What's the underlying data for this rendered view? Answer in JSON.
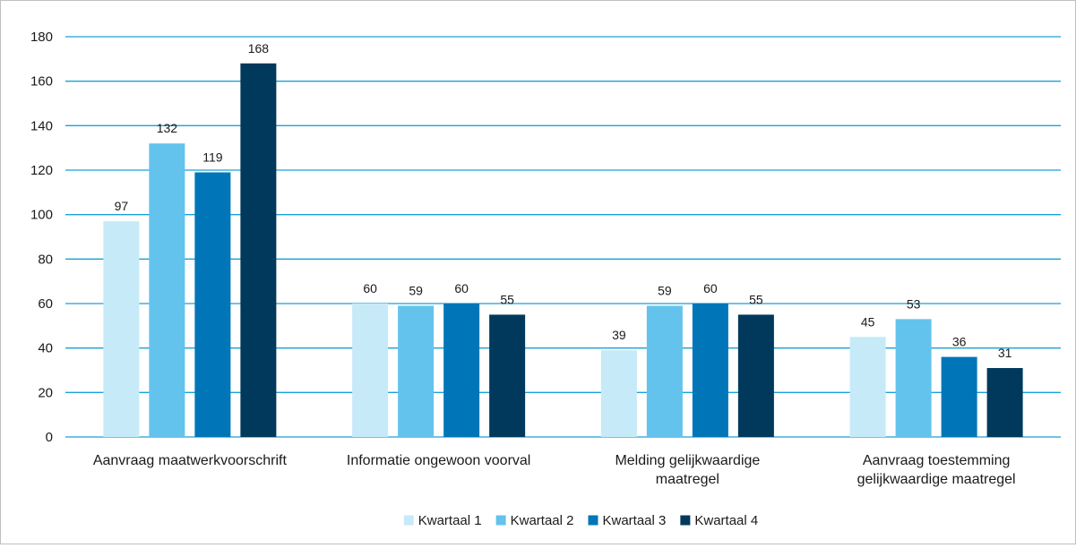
{
  "chart_data": {
    "type": "bar",
    "categories": [
      [
        "Aanvraag maatwerkvoorschrift"
      ],
      [
        "Informatie ongewoon voorval"
      ],
      [
        "Melding gelijkwaardige",
        "maatregel"
      ],
      [
        "Aanvraag toestemming",
        "gelijkwaardige maatregel"
      ]
    ],
    "series": [
      {
        "name": "Kwartaal 1",
        "color": "#c6eaf8",
        "values": [
          97,
          60,
          39,
          45
        ]
      },
      {
        "name": "Kwartaal 2",
        "color": "#63c3ec",
        "values": [
          132,
          59,
          59,
          53
        ]
      },
      {
        "name": "Kwartaal 3",
        "color": "#0076b8",
        "values": [
          119,
          60,
          60,
          36
        ]
      },
      {
        "name": "Kwartaal 4",
        "color": "#00395c",
        "values": [
          168,
          55,
          55,
          31
        ]
      }
    ],
    "ylim": [
      0,
      180
    ],
    "yticks": [
      0,
      20,
      40,
      60,
      80,
      100,
      120,
      140,
      160,
      180
    ],
    "gridline_color": "#1aa0d8",
    "grid": true,
    "data_labels": true,
    "legend": "bottom-center",
    "title": "",
    "xlabel": "",
    "ylabel": ""
  }
}
